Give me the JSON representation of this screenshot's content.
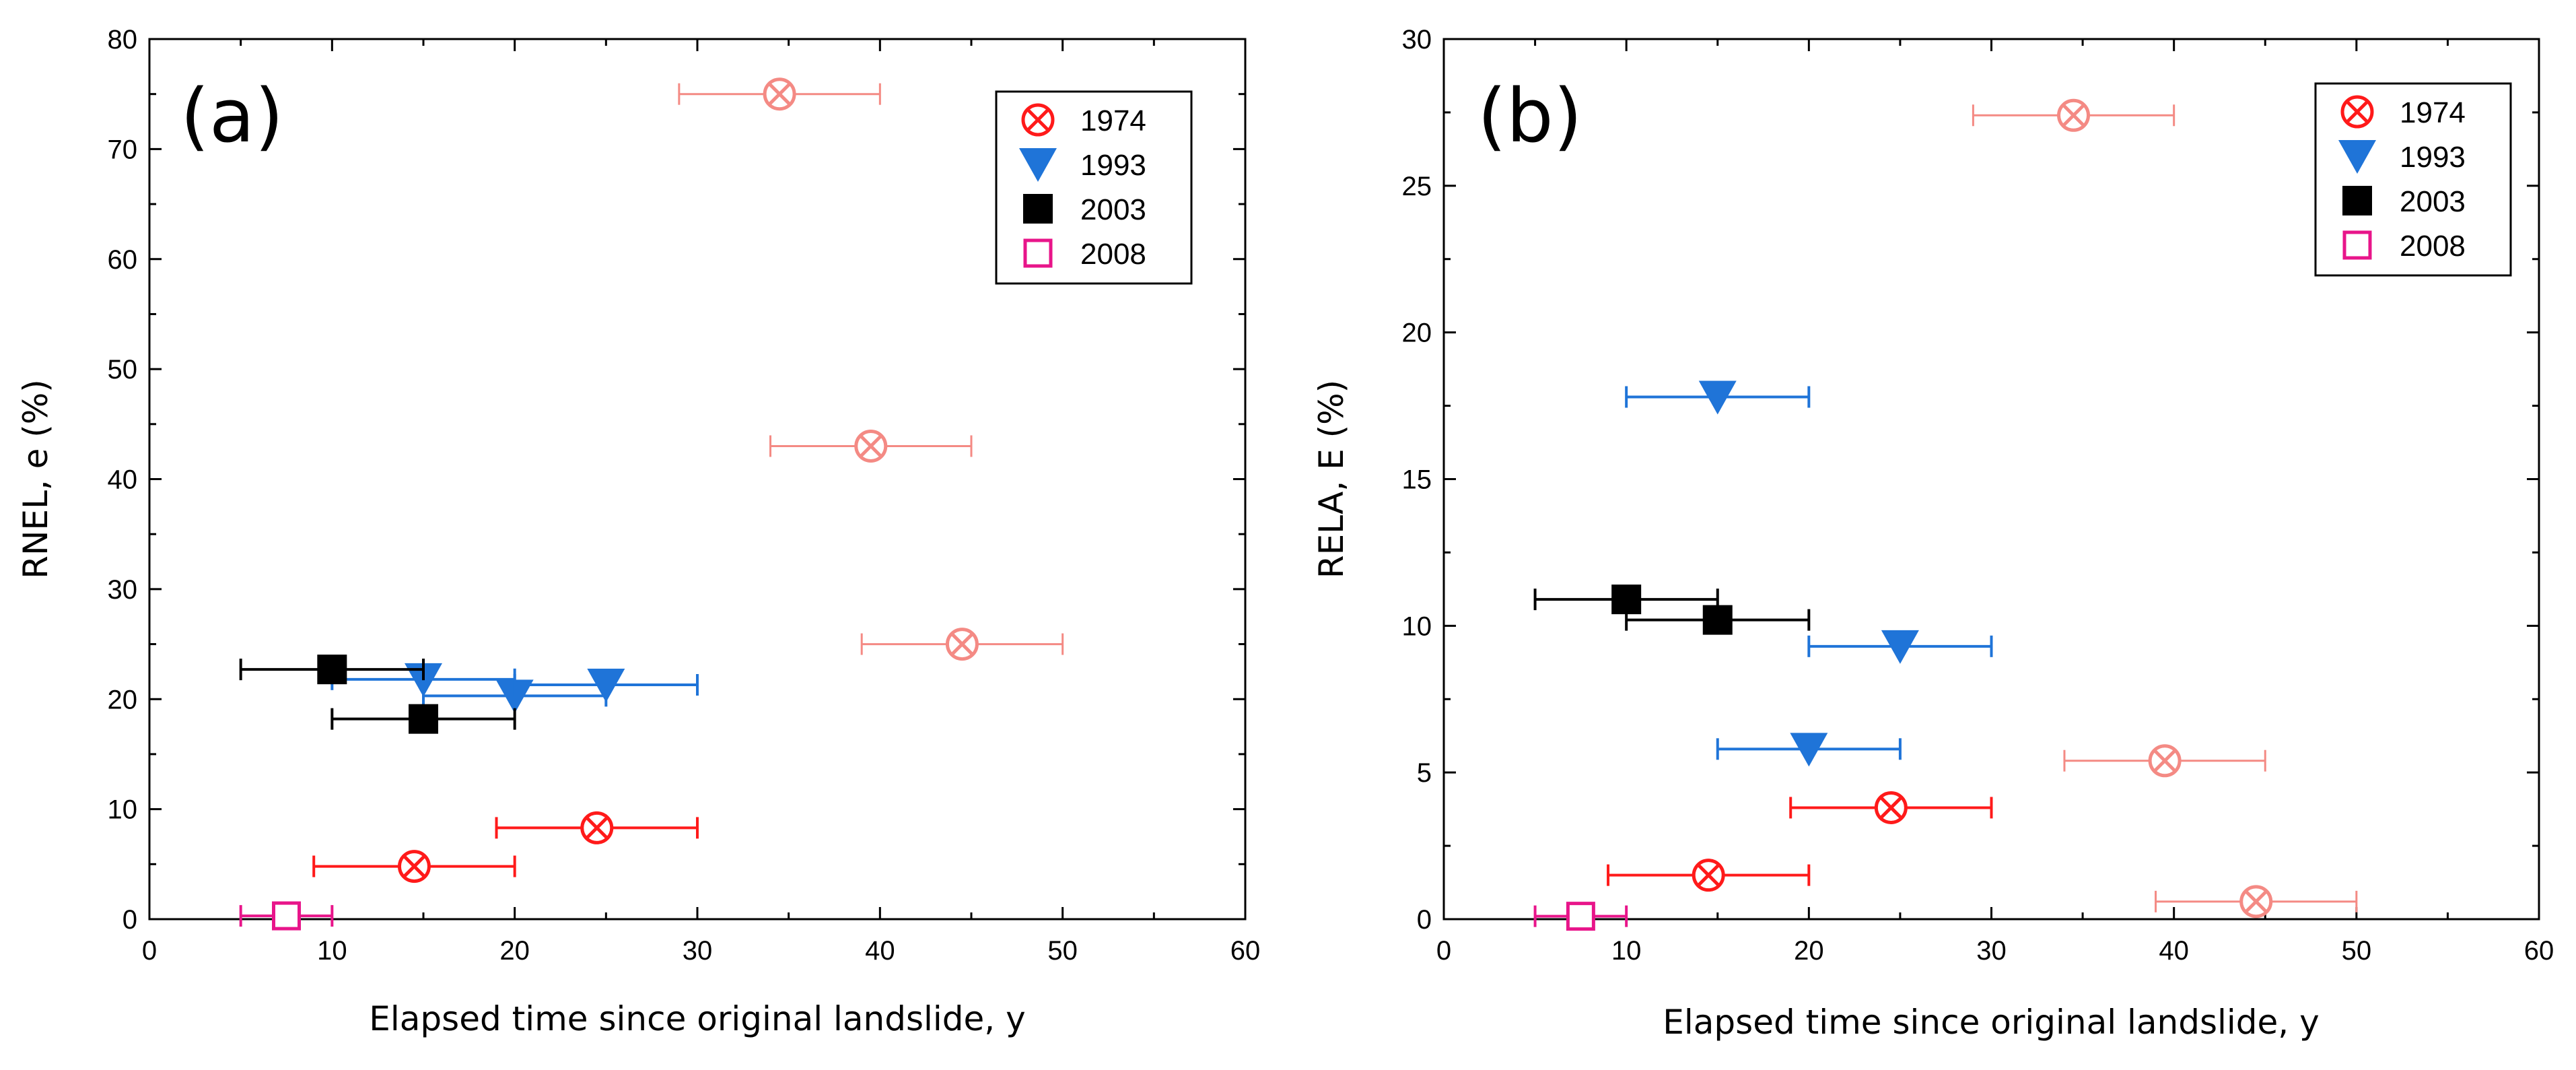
{
  "chart_data": [
    {
      "type": "scatter",
      "panel_label": "(a)",
      "xlabel": "Elapsed time since original landslide, y",
      "ylabel": "RNEL, e (%)",
      "xlim": [
        0,
        60
      ],
      "ylim": [
        0,
        80
      ],
      "xticks": [
        0,
        10,
        20,
        30,
        40,
        50,
        60
      ],
      "yticks": [
        0,
        10,
        20,
        30,
        40,
        50,
        60,
        70,
        80
      ],
      "legend_position": "top-right",
      "series": [
        {
          "name": "1974",
          "marker": "circle-x",
          "color": "#ff1a1a",
          "points": [
            {
              "x": 14.5,
              "y": 4.8,
              "xerr": [
                9,
                20
              ]
            },
            {
              "x": 24.5,
              "y": 8.3,
              "xerr": [
                19,
                30
              ]
            },
            {
              "x": 34.5,
              "y": 75,
              "xerr": [
                29,
                40
              ],
              "faded": true
            },
            {
              "x": 39.5,
              "y": 43,
              "xerr": [
                34,
                45
              ],
              "faded": true
            },
            {
              "x": 44.5,
              "y": 25,
              "xerr": [
                39,
                50
              ],
              "faded": true
            }
          ]
        },
        {
          "name": "1993",
          "marker": "triangle-down",
          "color": "#1f74d8",
          "points": [
            {
              "x": 15,
              "y": 21.8,
              "xerr": [
                10,
                20
              ]
            },
            {
              "x": 20,
              "y": 20.3,
              "xerr": [
                15,
                25
              ]
            },
            {
              "x": 25,
              "y": 21.3,
              "xerr": [
                20,
                30
              ]
            }
          ]
        },
        {
          "name": "2003",
          "marker": "square",
          "color": "#000000",
          "points": [
            {
              "x": 10,
              "y": 22.7,
              "xerr": [
                5,
                15
              ]
            },
            {
              "x": 15,
              "y": 18.2,
              "xerr": [
                10,
                20
              ]
            }
          ]
        },
        {
          "name": "2008",
          "marker": "open-square",
          "color": "#e8158a",
          "points": [
            {
              "x": 7.5,
              "y": 0.3,
              "xerr": [
                5,
                10
              ]
            }
          ]
        }
      ]
    },
    {
      "type": "scatter",
      "panel_label": "(b)",
      "xlabel": "Elapsed time since original landslide, y",
      "ylabel": "RELA, E (%)",
      "xlim": [
        0,
        60
      ],
      "ylim": [
        0,
        30
      ],
      "xticks": [
        0,
        10,
        20,
        30,
        40,
        50,
        60
      ],
      "yticks": [
        0,
        5,
        10,
        15,
        20,
        25,
        30
      ],
      "legend_position": "top-right",
      "series": [
        {
          "name": "1974",
          "marker": "circle-x",
          "color": "#ff1a1a",
          "points": [
            {
              "x": 14.5,
              "y": 1.5,
              "xerr": [
                9,
                20
              ]
            },
            {
              "x": 24.5,
              "y": 3.8,
              "xerr": [
                19,
                30
              ]
            },
            {
              "x": 34.5,
              "y": 27.4,
              "xerr": [
                29,
                40
              ],
              "faded": true
            },
            {
              "x": 39.5,
              "y": 5.4,
              "xerr": [
                34,
                45
              ],
              "faded": true
            },
            {
              "x": 44.5,
              "y": 0.6,
              "xerr": [
                39,
                50
              ],
              "faded": true
            }
          ]
        },
        {
          "name": "1993",
          "marker": "triangle-down",
          "color": "#1f74d8",
          "points": [
            {
              "x": 15,
              "y": 17.8,
              "xerr": [
                10,
                20
              ]
            },
            {
              "x": 20,
              "y": 5.8,
              "xerr": [
                15,
                25
              ]
            },
            {
              "x": 25,
              "y": 9.3,
              "xerr": [
                20,
                30
              ]
            }
          ]
        },
        {
          "name": "2003",
          "marker": "square",
          "color": "#000000",
          "points": [
            {
              "x": 10,
              "y": 10.9,
              "xerr": [
                5,
                15
              ]
            },
            {
              "x": 15,
              "y": 10.2,
              "xerr": [
                10,
                20
              ]
            }
          ]
        },
        {
          "name": "2008",
          "marker": "open-square",
          "color": "#e8158a",
          "points": [
            {
              "x": 7.5,
              "y": 0.1,
              "xerr": [
                5,
                10
              ]
            }
          ]
        }
      ]
    }
  ]
}
